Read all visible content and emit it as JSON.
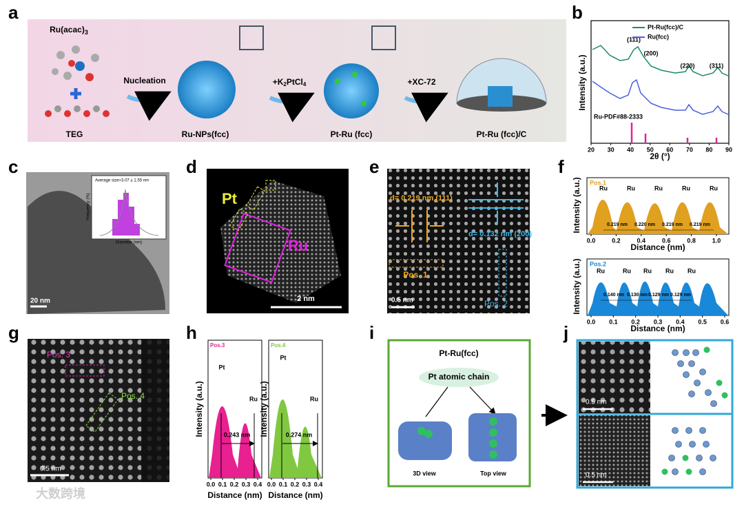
{
  "panel_labels": [
    "a",
    "b",
    "c",
    "d",
    "e",
    "f",
    "g",
    "h",
    "i",
    "j"
  ],
  "a": {
    "reagent1": "Ru(acac)",
    "reagent1_sub": "3",
    "reagent2": "TEG",
    "step1": "Nucleation",
    "step2_pre": "+K",
    "step2_sub1": "2",
    "step2_mid": "PtCl",
    "step2_sub2": "4",
    "step3": "+XC-72",
    "product1": "Ru-NPs(fcc)",
    "product2": "Pt-Ru (fcc)",
    "product3": "Pt-Ru (fcc)/C"
  },
  "b": {
    "legend": [
      "Pt-Ru(fcc)/C",
      "Ru(fcc)"
    ],
    "colors": [
      "#1a8a6a",
      "#4a5fe0"
    ],
    "peaks": [
      "(111)",
      "(200)",
      "(220)",
      "(311)"
    ],
    "reference": "Ru-PDF#88-2333",
    "ylabel": "Intensity (a.u.)",
    "xlabel": "2θ (°)",
    "xticks": [
      20,
      30,
      40,
      50,
      60,
      70,
      80,
      90
    ]
  },
  "c": {
    "inset_title": "Average size=3.07 ± 1.55 nm",
    "inset_ylabel": "Frequency (%)",
    "inset_xlabel": "Diameter (nm)",
    "scale": "20 nm"
  },
  "d": {
    "pt": "Pt",
    "ru": "Ru",
    "scale": "2 nm"
  },
  "e": {
    "d1": "d= 0.219 nm (111)",
    "d2": "d= 0.132 nm (200)",
    "pos1": "Pos. 1",
    "pos2": "Pos. 2",
    "scale": "0.5 nm"
  },
  "f": {
    "ylabel": "Intensity (a.u.)",
    "xlabel": "Distance (nm)",
    "top": {
      "title": "Pos.1",
      "peak": "Ru",
      "distances": [
        "0.219 nm",
        "0.220 nm",
        "0.219 nm",
        "0.219 nm"
      ],
      "xticks": [
        {
          "value": 0,
          "label": "0.0"
        },
        0.2,
        0.4,
        0.6,
        0.8,
        {
          "value": 1,
          "label": "1.0"
        }
      ]
    },
    "bottom": {
      "title": "Pos.2",
      "peak": "Ru",
      "distances": [
        "0.140 nm",
        "0.130 nm",
        "0.129 nm",
        "0.129 nm"
      ],
      "xticks": [
        {
          "value": 0,
          "label": "0.0"
        },
        0.1,
        0.2,
        0.3,
        0.4,
        0.5,
        0.6
      ]
    }
  },
  "g": {
    "pos3": "Pos. 3",
    "pos4": "Pos. 4",
    "scale": "0.5 nm"
  },
  "h": {
    "ylabel": "Intensity (a.u.)",
    "xlabel": "Distance (nm)",
    "left": {
      "title": "Pos.3",
      "pt": "Pt",
      "ru": "Ru",
      "distance": "0.243 nm",
      "xticks": [
        {
          "value": 0,
          "label": "0.0"
        },
        0.1,
        0.2,
        0.3,
        0.4
      ]
    },
    "right": {
      "title": "Pos.4",
      "pt": "Pt",
      "ru": "Ru",
      "distance": "0.274 nm",
      "xticks": [
        {
          "value": 0,
          "label": "0.0"
        },
        0.1,
        0.2,
        0.3,
        0.4
      ]
    }
  },
  "i": {
    "title": "Pt-Ru(fcc)",
    "chain": "Pt atomic chain",
    "view1": "3D view",
    "view2": "Top view"
  },
  "j": {
    "scale_top": "0.5 nm",
    "scale_bottom": "0.5 nm"
  },
  "watermark": "大数跨境"
}
